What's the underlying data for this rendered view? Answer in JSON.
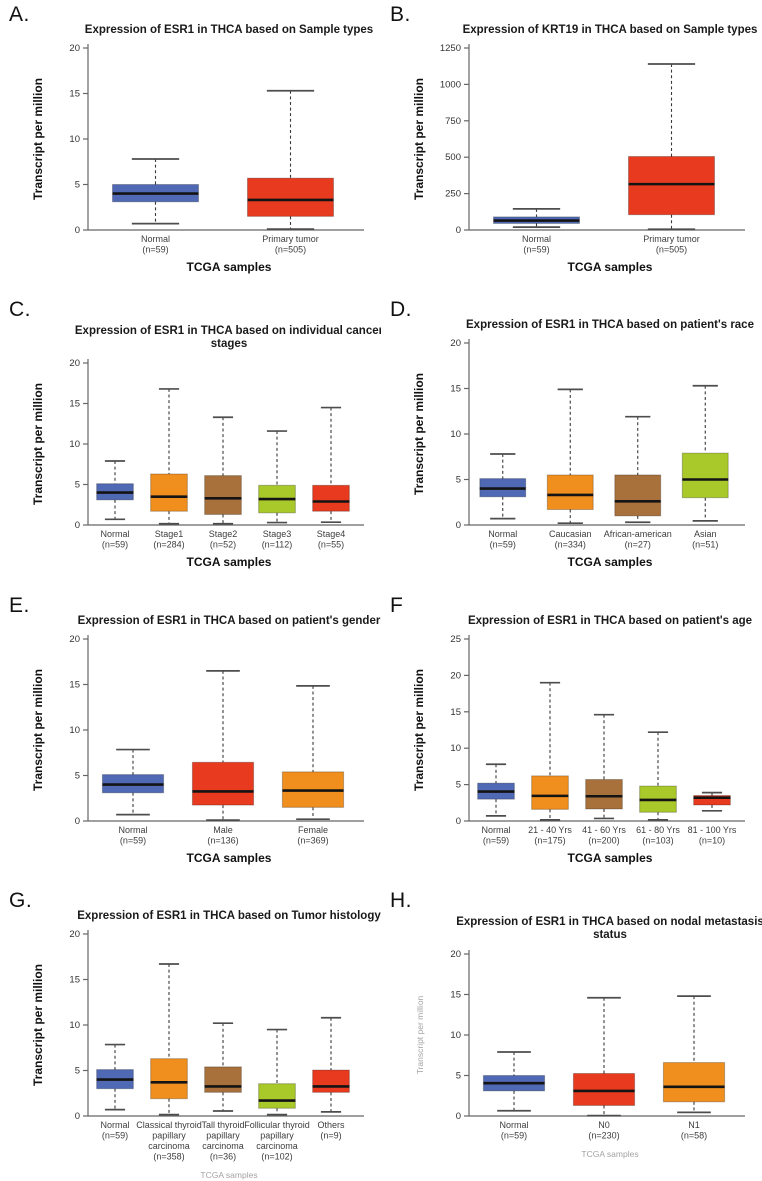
{
  "colors": {
    "blue": "#5069B4",
    "red": "#E83A1E",
    "orange": "#F08E1E",
    "brown": "#A8713B",
    "green": "#A9C82A",
    "muted_label": "#A3A3A3"
  },
  "chart_data": [
    {
      "id": "A",
      "letter": "A.",
      "type": "box",
      "title_lines": [
        "Expression of ESR1 in THCA based on Sample types"
      ],
      "ylabel": "Transcript per million",
      "xlabel": "TCGA samples",
      "ylim": [
        0,
        20
      ],
      "yticks": [
        0,
        5,
        10,
        15,
        20
      ],
      "muted_ylabel": false,
      "muted_xlabel": false,
      "boxes": [
        {
          "label_lines": [
            "Normal"
          ],
          "n": "(n=59)",
          "color": "blue",
          "low": 0.7,
          "q1": 3.1,
          "median": 4.0,
          "q3": 5.0,
          "high": 7.8
        },
        {
          "label_lines": [
            "Primary tumor"
          ],
          "n": "(n=505)",
          "color": "red",
          "low": 0.1,
          "q1": 1.5,
          "median": 3.3,
          "q3": 5.7,
          "high": 15.3
        }
      ]
    },
    {
      "id": "B",
      "letter": "B.",
      "type": "box",
      "title_lines": [
        "Expression of KRT19 in THCA based on Sample types"
      ],
      "ylabel": "Transcript per million",
      "xlabel": "TCGA samples",
      "ylim": [
        0,
        1250
      ],
      "yticks": [
        0,
        250,
        500,
        750,
        1000,
        1250
      ],
      "muted_ylabel": false,
      "muted_xlabel": false,
      "boxes": [
        {
          "label_lines": [
            "Normal"
          ],
          "n": "(n=59)",
          "color": "blue",
          "low": 20,
          "q1": 45,
          "median": 65,
          "q3": 90,
          "high": 145
        },
        {
          "label_lines": [
            "Primary tumor"
          ],
          "n": "(n=505)",
          "color": "red",
          "low": 5,
          "q1": 105,
          "median": 315,
          "q3": 505,
          "high": 1140
        }
      ]
    },
    {
      "id": "C",
      "letter": "C.",
      "type": "box",
      "title_lines": [
        "Expression of ESR1 in THCA based on individual cancer",
        "stages"
      ],
      "ylabel": "Transcript per million",
      "xlabel": "TCGA samples",
      "ylim": [
        0,
        20
      ],
      "yticks": [
        0,
        5,
        10,
        15,
        20
      ],
      "muted_ylabel": false,
      "muted_xlabel": false,
      "boxes": [
        {
          "label_lines": [
            "Normal"
          ],
          "n": "(n=59)",
          "color": "blue",
          "low": 0.7,
          "q1": 3.1,
          "median": 4.0,
          "q3": 5.1,
          "high": 7.9
        },
        {
          "label_lines": [
            "Stage1"
          ],
          "n": "(n=284)",
          "color": "orange",
          "low": 0.15,
          "q1": 1.7,
          "median": 3.5,
          "q3": 6.3,
          "high": 16.8
        },
        {
          "label_lines": [
            "Stage2"
          ],
          "n": "(n=52)",
          "color": "brown",
          "low": 0.15,
          "q1": 1.3,
          "median": 3.3,
          "q3": 6.1,
          "high": 13.3
        },
        {
          "label_lines": [
            "Stage3"
          ],
          "n": "(n=112)",
          "color": "green",
          "low": 0.3,
          "q1": 1.5,
          "median": 3.2,
          "q3": 4.9,
          "high": 11.6
        },
        {
          "label_lines": [
            "Stage4"
          ],
          "n": "(n=55)",
          "color": "red",
          "low": 0.35,
          "q1": 1.7,
          "median": 2.9,
          "q3": 4.9,
          "high": 14.5
        }
      ]
    },
    {
      "id": "D",
      "letter": "D.",
      "type": "box",
      "title_lines": [
        "Expression of ESR1 in THCA based on patient's race"
      ],
      "ylabel": "Transcript per million",
      "xlabel": "TCGA samples",
      "ylim": [
        0,
        20
      ],
      "yticks": [
        0,
        5,
        10,
        15,
        20
      ],
      "muted_ylabel": false,
      "muted_xlabel": false,
      "boxes": [
        {
          "label_lines": [
            "Normal"
          ],
          "n": "(n=59)",
          "color": "blue",
          "low": 0.7,
          "q1": 3.1,
          "median": 4.0,
          "q3": 5.1,
          "high": 7.8
        },
        {
          "label_lines": [
            "Caucasian"
          ],
          "n": "(n=334)",
          "color": "orange",
          "low": 0.2,
          "q1": 1.7,
          "median": 3.3,
          "q3": 5.5,
          "high": 14.9
        },
        {
          "label_lines": [
            "African-american"
          ],
          "n": "(n=27)",
          "color": "brown",
          "low": 0.3,
          "q1": 1.0,
          "median": 2.6,
          "q3": 5.5,
          "high": 11.9
        },
        {
          "label_lines": [
            "Asian"
          ],
          "n": "(n=51)",
          "color": "green",
          "low": 0.45,
          "q1": 3.0,
          "median": 5.0,
          "q3": 7.9,
          "high": 15.3
        }
      ]
    },
    {
      "id": "E",
      "letter": "E.",
      "type": "box",
      "title_lines": [
        "Expression of ESR1 in THCA based on patient's gender"
      ],
      "ylabel": "Transcript per million",
      "xlabel": "TCGA samples",
      "ylim": [
        0,
        20
      ],
      "yticks": [
        0,
        5,
        10,
        15,
        20
      ],
      "muted_ylabel": false,
      "muted_xlabel": false,
      "boxes": [
        {
          "label_lines": [
            "Normal"
          ],
          "n": "(n=59)",
          "color": "blue",
          "low": 0.7,
          "q1": 3.1,
          "median": 4.0,
          "q3": 5.1,
          "high": 7.85
        },
        {
          "label_lines": [
            "Male"
          ],
          "n": "(n=136)",
          "color": "red",
          "low": 0.1,
          "q1": 1.75,
          "median": 3.25,
          "q3": 6.45,
          "high": 16.5
        },
        {
          "label_lines": [
            "Female"
          ],
          "n": "(n=369)",
          "color": "orange",
          "low": 0.2,
          "q1": 1.5,
          "median": 3.35,
          "q3": 5.4,
          "high": 14.85
        }
      ]
    },
    {
      "id": "F",
      "letter": "F",
      "type": "box",
      "title_lines": [
        "Expression of ESR1 in THCA based on patient's age"
      ],
      "ylabel": "Transcript per million",
      "xlabel": "TCGA samples",
      "ylim": [
        0,
        25
      ],
      "yticks": [
        0,
        5,
        10,
        15,
        20,
        25
      ],
      "muted_ylabel": false,
      "muted_xlabel": false,
      "boxes": [
        {
          "label_lines": [
            "Normal"
          ],
          "n": "(n=59)",
          "color": "blue",
          "low": 0.7,
          "q1": 3.0,
          "median": 4.05,
          "q3": 5.2,
          "high": 7.8
        },
        {
          "label_lines": [
            "21 - 40 Yrs"
          ],
          "n": "(n=175)",
          "color": "orange",
          "low": 0.15,
          "q1": 1.6,
          "median": 3.45,
          "q3": 6.2,
          "high": 19.0
        },
        {
          "label_lines": [
            "41 - 60 Yrs"
          ],
          "n": "(n=200)",
          "color": "brown",
          "low": 0.35,
          "q1": 1.65,
          "median": 3.4,
          "q3": 5.7,
          "high": 14.6
        },
        {
          "label_lines": [
            "61 - 80 Yrs"
          ],
          "n": "(n=103)",
          "color": "green",
          "low": 0.15,
          "q1": 1.2,
          "median": 2.9,
          "q3": 4.8,
          "high": 12.2
        },
        {
          "label_lines": [
            "81 - 100 Yrs"
          ],
          "n": "(n=10)",
          "color": "red",
          "low": 1.4,
          "q1": 2.2,
          "median": 3.2,
          "q3": 3.5,
          "high": 3.9
        }
      ]
    },
    {
      "id": "G",
      "letter": "G.",
      "type": "box",
      "title_lines": [
        "Expression of ESR1 in THCA based on Tumor histology"
      ],
      "ylabel": "Transcript per million",
      "xlabel": "TCGA samples",
      "ylim": [
        0,
        20
      ],
      "yticks": [
        0,
        5,
        10,
        15,
        20
      ],
      "muted_ylabel": false,
      "muted_xlabel": true,
      "boxes": [
        {
          "label_lines": [
            "Normal"
          ],
          "n": "(n=59)",
          "color": "blue",
          "low": 0.7,
          "q1": 3.0,
          "median": 4.0,
          "q3": 5.1,
          "high": 7.85
        },
        {
          "label_lines": [
            "Classical thyroid",
            "papillary",
            "carcinoma"
          ],
          "n": "(n=358)",
          "color": "orange",
          "low": 0.15,
          "q1": 1.9,
          "median": 3.7,
          "q3": 6.3,
          "high": 16.7
        },
        {
          "label_lines": [
            "Tall thyroid",
            "papillary",
            "carcinoma"
          ],
          "n": "(n=36)",
          "color": "brown",
          "low": 0.55,
          "q1": 2.6,
          "median": 3.25,
          "q3": 5.4,
          "high": 10.2
        },
        {
          "label_lines": [
            "Follicular thyroid",
            "papillary",
            "carcinoma"
          ],
          "n": "(n=102)",
          "color": "green",
          "low": 0.15,
          "q1": 0.85,
          "median": 1.7,
          "q3": 3.55,
          "high": 9.5
        },
        {
          "label_lines": [
            "Others"
          ],
          "n": "(n=9)",
          "color": "red",
          "low": 0.45,
          "q1": 2.6,
          "median": 3.25,
          "q3": 5.05,
          "high": 10.8
        }
      ]
    },
    {
      "id": "H",
      "letter": "H.",
      "type": "box",
      "title_lines": [
        "Expression of ESR1 in THCA based on nodal metastasis",
        "status"
      ],
      "ylabel": "Transcript per million",
      "xlabel": "TCGA samples",
      "ylim": [
        0,
        20
      ],
      "yticks": [
        0,
        5,
        10,
        15,
        20
      ],
      "muted_ylabel": true,
      "muted_xlabel": true,
      "boxes": [
        {
          "label_lines": [
            "Normal"
          ],
          "n": "(n=59)",
          "color": "blue",
          "low": 0.65,
          "q1": 3.1,
          "median": 4.05,
          "q3": 5.0,
          "high": 7.9
        },
        {
          "label_lines": [
            "N0"
          ],
          "n": "(n=230)",
          "color": "red",
          "low": 0.05,
          "q1": 1.3,
          "median": 3.1,
          "q3": 5.25,
          "high": 14.6
        },
        {
          "label_lines": [
            "N1"
          ],
          "n": "(n=58)",
          "color": "orange",
          "low": 0.45,
          "q1": 1.75,
          "median": 3.6,
          "q3": 6.6,
          "high": 14.8
        }
      ]
    }
  ]
}
